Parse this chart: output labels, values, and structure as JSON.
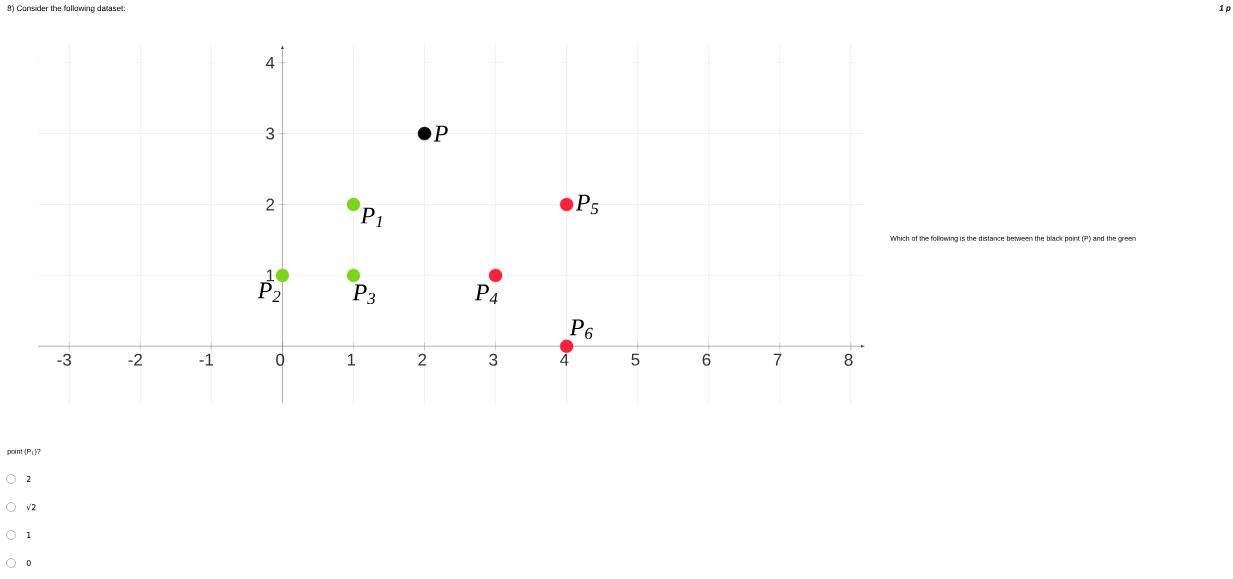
{
  "chart_data": {
    "type": "scatter",
    "title": "8) Consider the following dataset:",
    "subtitle": "1 p",
    "xlim": [
      -3.44,
      8.2
    ],
    "ylim": [
      -0.8,
      4.25
    ],
    "xticks": [
      -3,
      -2,
      -1,
      0,
      1,
      2,
      3,
      4,
      5,
      6,
      7,
      8
    ],
    "yticks": [
      1,
      2,
      3,
      4
    ],
    "grid": true,
    "marker": "circle",
    "series": [
      {
        "color": "#000000",
        "x": [
          2
        ],
        "values": [
          3
        ]
      },
      {
        "color": "#7ed321",
        "x": [
          1,
          0,
          1
        ],
        "values": [
          2,
          1,
          1
        ]
      },
      {
        "color": "#f5233c",
        "x": [
          3,
          4,
          4
        ],
        "values": [
          1,
          2,
          0
        ]
      }
    ],
    "annotations": [
      {
        "text": "P",
        "x": 2,
        "y": 3
      },
      {
        "text": "P$_{1}$",
        "x": 1,
        "y": 2
      },
      {
        "text": "P$_{2}$",
        "x": 0,
        "y": 1
      },
      {
        "text": "P$_{3}$",
        "x": 1,
        "y": 1
      },
      {
        "text": "P$_{4}$",
        "x": 3,
        "y": 1
      },
      {
        "text": "P$_{5}$",
        "x": 4,
        "y": 2
      },
      {
        "text": "P$_{6}$",
        "x": 4,
        "y": 0
      },
      "Which of the following is the distance between the black point (P) and the green",
      "point (P$_{1}$)?",
      "2",
      "√2",
      "1",
      "0"
    ]
  }
}
